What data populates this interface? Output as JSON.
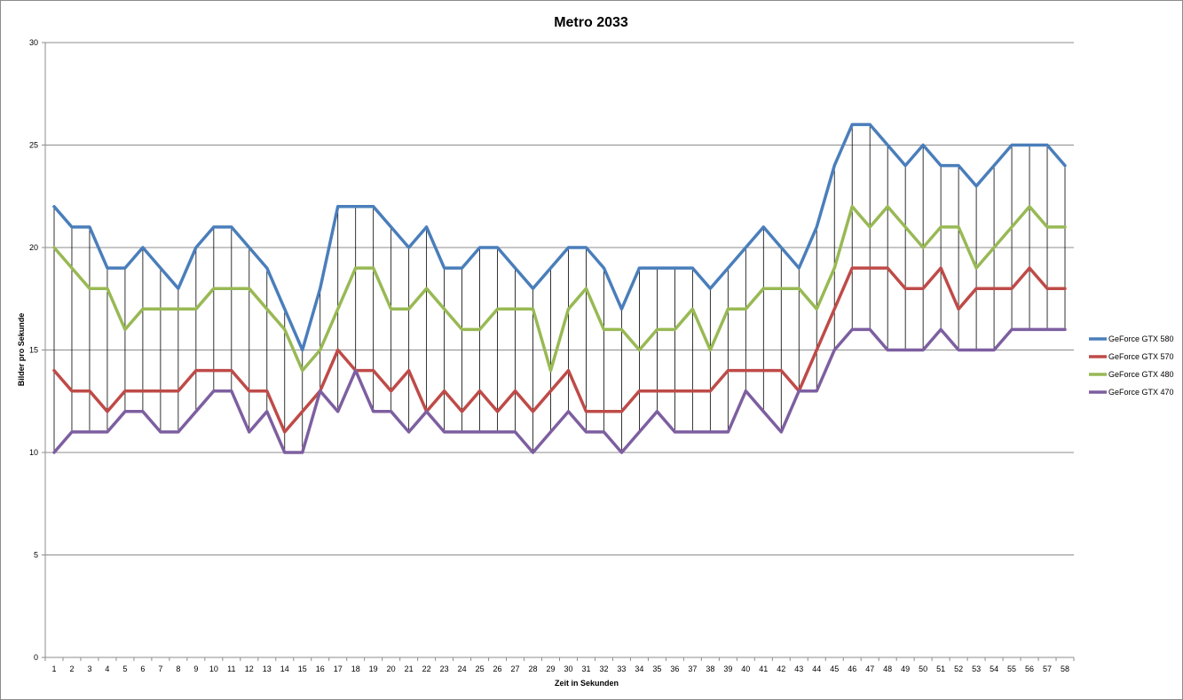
{
  "chart_data": {
    "type": "line",
    "title": "Metro 2033",
    "xlabel": "Zeit in Sekunden",
    "ylabel": "Bilder pro Sekunde",
    "ylim": [
      0,
      30
    ],
    "yticks": [
      0,
      5,
      10,
      15,
      20,
      25,
      30
    ],
    "grid": "horizontal",
    "high_low_lines": true,
    "legend_position": "right",
    "categories": [
      "1",
      "2",
      "3",
      "4",
      "5",
      "6",
      "7",
      "8",
      "9",
      "10",
      "11",
      "12",
      "13",
      "14",
      "15",
      "16",
      "17",
      "18",
      "19",
      "20",
      "21",
      "22",
      "23",
      "24",
      "25",
      "26",
      "27",
      "28",
      "29",
      "30",
      "31",
      "32",
      "33",
      "34",
      "35",
      "36",
      "37",
      "38",
      "39",
      "40",
      "41",
      "42",
      "43",
      "44",
      "45",
      "46",
      "47",
      "48",
      "49",
      "50",
      "51",
      "52",
      "53",
      "54",
      "55",
      "56",
      "57",
      "58"
    ],
    "series": [
      {
        "name": "GeForce GTX 580",
        "color": "#4a7ebb",
        "values": [
          22,
          21,
          21,
          19,
          19,
          20,
          19,
          18,
          20,
          21,
          21,
          20,
          19,
          17,
          15,
          18,
          22,
          22,
          22,
          21,
          20,
          21,
          19,
          19,
          20,
          20,
          19,
          18,
          19,
          20,
          20,
          19,
          17,
          19,
          19,
          19,
          19,
          18,
          19,
          20,
          21,
          20,
          19,
          21,
          24,
          26,
          26,
          25,
          24,
          25,
          24,
          24,
          23,
          24,
          25,
          25,
          25,
          24
        ]
      },
      {
        "name": "GeForce GTX 570",
        "color": "#be4b48",
        "values": [
          14,
          13,
          13,
          12,
          13,
          13,
          13,
          13,
          14,
          14,
          14,
          13,
          13,
          11,
          12,
          13,
          15,
          14,
          14,
          13,
          14,
          12,
          13,
          12,
          13,
          12,
          13,
          12,
          13,
          14,
          12,
          12,
          12,
          13,
          13,
          13,
          13,
          13,
          14,
          14,
          14,
          14,
          13,
          15,
          17,
          19,
          19,
          19,
          18,
          18,
          19,
          17,
          18,
          18,
          18,
          19,
          18,
          18
        ]
      },
      {
        "name": "GeForce GTX 480",
        "color": "#98b954",
        "values": [
          20,
          19,
          18,
          18,
          16,
          17,
          17,
          17,
          17,
          18,
          18,
          18,
          17,
          16,
          14,
          15,
          17,
          19,
          19,
          17,
          17,
          18,
          17,
          16,
          16,
          17,
          17,
          17,
          14,
          17,
          18,
          16,
          16,
          15,
          16,
          16,
          17,
          15,
          17,
          17,
          18,
          18,
          18,
          17,
          19,
          22,
          21,
          22,
          21,
          20,
          21,
          21,
          19,
          20,
          21,
          22,
          21,
          21
        ]
      },
      {
        "name": "GeForce GTX 470",
        "color": "#7d5fa0",
        "values": [
          10,
          11,
          11,
          11,
          12,
          12,
          11,
          11,
          12,
          13,
          13,
          11,
          12,
          10,
          10,
          13,
          12,
          14,
          12,
          12,
          11,
          12,
          11,
          11,
          11,
          11,
          11,
          10,
          11,
          12,
          11,
          11,
          10,
          11,
          12,
          11,
          11,
          11,
          11,
          13,
          12,
          11,
          13,
          13,
          15,
          16,
          16,
          15,
          15,
          15,
          16,
          15,
          15,
          15,
          16,
          16,
          16,
          16
        ]
      }
    ]
  }
}
